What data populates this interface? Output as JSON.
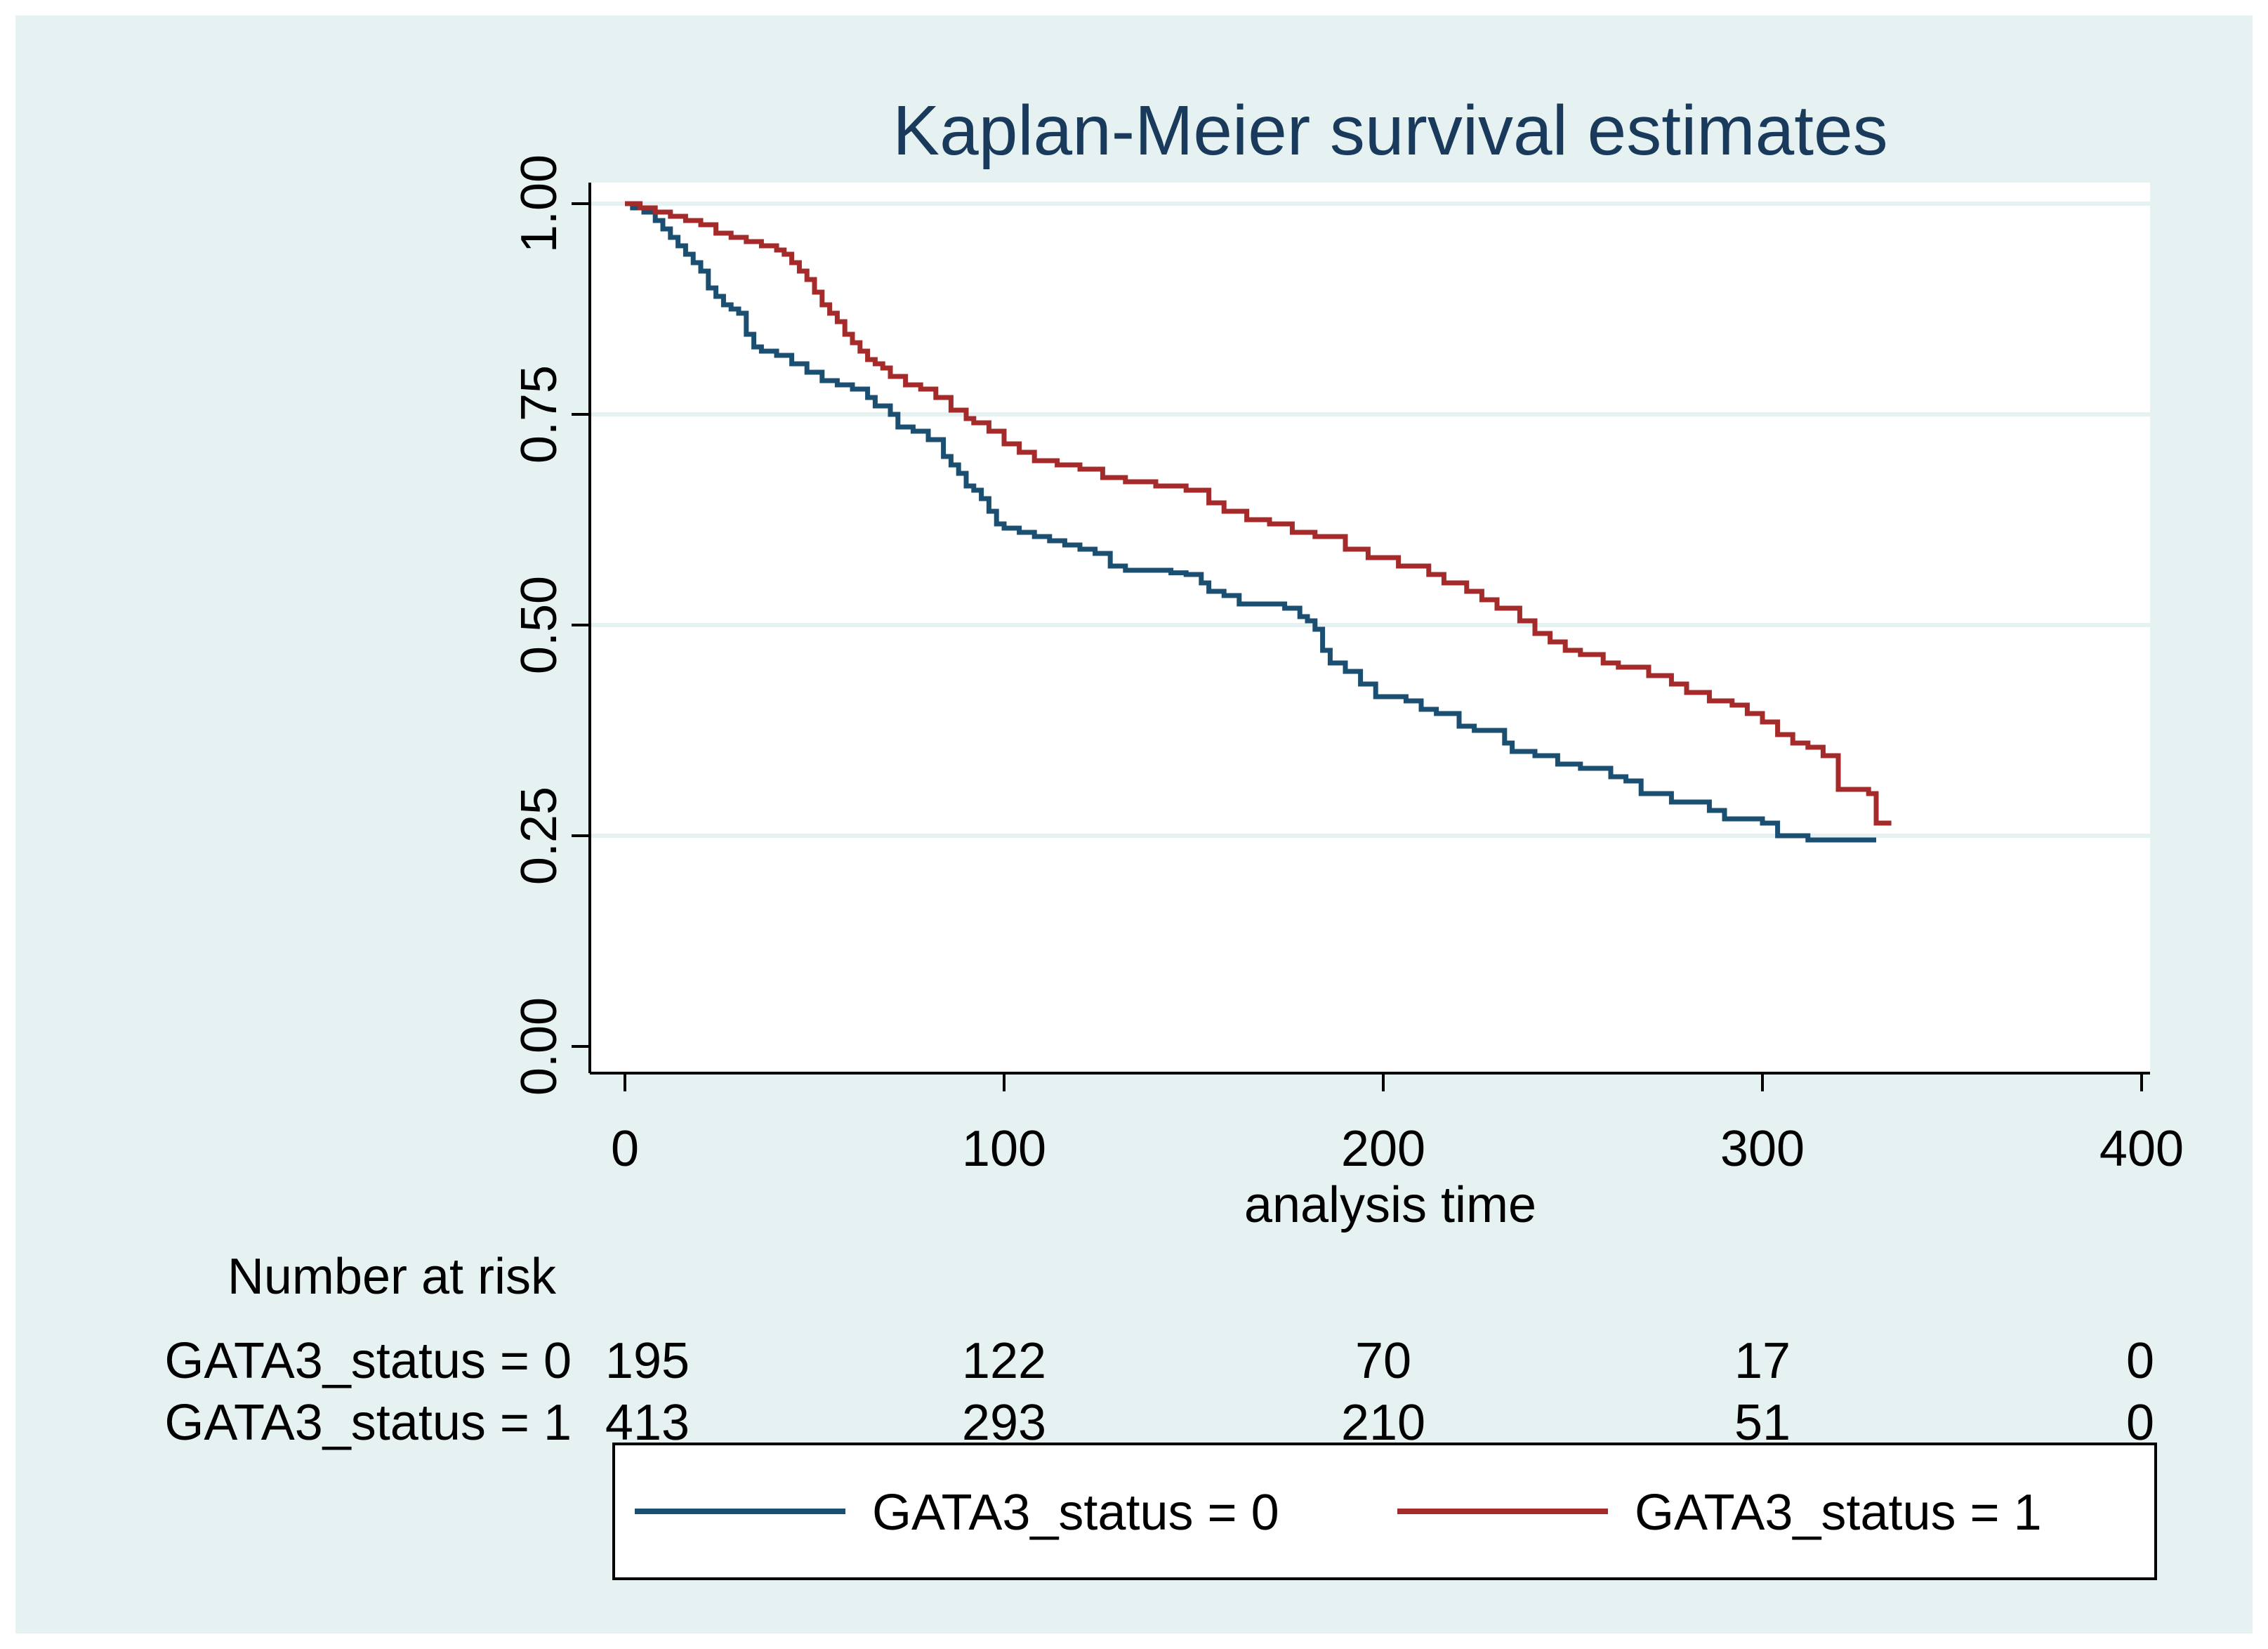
{
  "chart_data": {
    "type": "line",
    "step": true,
    "title": "Kaplan-Meier survival estimates",
    "xlabel": "analysis time",
    "ylabel": "",
    "xlim": [
      0,
      400
    ],
    "ylim": [
      0,
      1
    ],
    "xticks": [
      0,
      100,
      200,
      300,
      400
    ],
    "xtick_labels": [
      "0",
      "100",
      "200",
      "300",
      "400"
    ],
    "yticks": [
      0,
      0.25,
      0.5,
      0.75,
      1
    ],
    "ytick_labels": [
      "0.00",
      "0.25",
      "0.50",
      "0.75",
      "1.00"
    ],
    "grid": "horizontal",
    "colors": {
      "series0": "#1b4f72",
      "series1": "#a52a2a",
      "background": "#e6f1f2",
      "plot": "#ffffff",
      "grid": "#e6f1f2"
    },
    "series": [
      {
        "name": "GATA3_status = 0",
        "x": [
          0,
          2,
          5,
          8,
          10,
          12,
          14,
          16,
          18,
          20,
          22,
          24,
          26,
          28,
          30,
          32,
          34,
          36,
          40,
          44,
          48,
          52,
          56,
          60,
          64,
          66,
          70,
          72,
          76,
          80,
          84,
          86,
          88,
          90,
          92,
          94,
          96,
          98,
          100,
          104,
          108,
          112,
          116,
          120,
          124,
          128,
          132,
          136,
          140,
          144,
          148,
          150,
          152,
          154,
          158,
          162,
          166,
          170,
          174,
          178,
          180,
          182,
          184,
          186,
          190,
          194,
          198,
          206,
          210,
          214,
          220,
          224,
          228,
          232,
          234,
          240,
          246,
          252,
          260,
          264,
          268,
          276,
          280,
          286,
          290,
          300,
          304,
          312,
          318,
          330
        ],
        "y": [
          1.0,
          0.995,
          0.99,
          0.98,
          0.97,
          0.96,
          0.95,
          0.94,
          0.93,
          0.92,
          0.9,
          0.89,
          0.88,
          0.875,
          0.87,
          0.845,
          0.83,
          0.825,
          0.82,
          0.81,
          0.8,
          0.79,
          0.785,
          0.78,
          0.77,
          0.76,
          0.75,
          0.735,
          0.73,
          0.72,
          0.7,
          0.69,
          0.68,
          0.665,
          0.66,
          0.65,
          0.635,
          0.62,
          0.615,
          0.61,
          0.605,
          0.6,
          0.595,
          0.59,
          0.585,
          0.57,
          0.565,
          0.565,
          0.565,
          0.562,
          0.56,
          0.56,
          0.55,
          0.54,
          0.535,
          0.525,
          0.525,
          0.525,
          0.52,
          0.51,
          0.505,
          0.495,
          0.47,
          0.455,
          0.445,
          0.43,
          0.415,
          0.41,
          0.4,
          0.395,
          0.38,
          0.375,
          0.375,
          0.36,
          0.35,
          0.345,
          0.335,
          0.33,
          0.32,
          0.315,
          0.3,
          0.29,
          0.29,
          0.28,
          0.27,
          0.265,
          0.25,
          0.245,
          0.245,
          0.245
        ]
      },
      {
        "name": "GATA3_status = 1",
        "x": [
          0,
          4,
          8,
          12,
          16,
          20,
          24,
          28,
          32,
          36,
          40,
          42,
          44,
          46,
          48,
          50,
          52,
          54,
          56,
          58,
          60,
          62,
          64,
          66,
          68,
          70,
          74,
          78,
          82,
          86,
          90,
          92,
          96,
          100,
          104,
          108,
          114,
          120,
          126,
          132,
          140,
          148,
          154,
          158,
          164,
          170,
          176,
          182,
          190,
          196,
          204,
          212,
          216,
          222,
          226,
          230,
          236,
          240,
          244,
          248,
          252,
          258,
          262,
          270,
          276,
          280,
          286,
          292,
          296,
          300,
          304,
          308,
          312,
          316,
          320,
          328,
          330,
          334
        ],
        "y": [
          1.0,
          0.995,
          0.99,
          0.985,
          0.98,
          0.975,
          0.965,
          0.96,
          0.955,
          0.95,
          0.945,
          0.94,
          0.93,
          0.92,
          0.91,
          0.895,
          0.88,
          0.87,
          0.86,
          0.845,
          0.835,
          0.825,
          0.815,
          0.81,
          0.805,
          0.795,
          0.785,
          0.78,
          0.77,
          0.755,
          0.745,
          0.74,
          0.73,
          0.715,
          0.705,
          0.695,
          0.69,
          0.685,
          0.675,
          0.67,
          0.665,
          0.66,
          0.645,
          0.635,
          0.625,
          0.62,
          0.61,
          0.605,
          0.59,
          0.58,
          0.57,
          0.56,
          0.55,
          0.54,
          0.53,
          0.52,
          0.505,
          0.49,
          0.48,
          0.47,
          0.465,
          0.455,
          0.45,
          0.44,
          0.43,
          0.42,
          0.41,
          0.405,
          0.395,
          0.385,
          0.37,
          0.36,
          0.355,
          0.345,
          0.305,
          0.3,
          0.265,
          0.265
        ]
      }
    ],
    "risk_table": {
      "header": "Number at risk",
      "times": [
        0,
        100,
        200,
        300,
        400
      ],
      "rows": [
        {
          "label": "GATA3_status = 0",
          "counts": [
            "195",
            "122",
            "70",
            "17",
            "0"
          ]
        },
        {
          "label": "GATA3_status = 1",
          "counts": [
            "413",
            "293",
            "210",
            "51",
            "0"
          ]
        }
      ]
    },
    "legend": {
      "position": "bottom",
      "entries": [
        "GATA3_status = 0",
        "GATA3_status = 1"
      ]
    }
  }
}
